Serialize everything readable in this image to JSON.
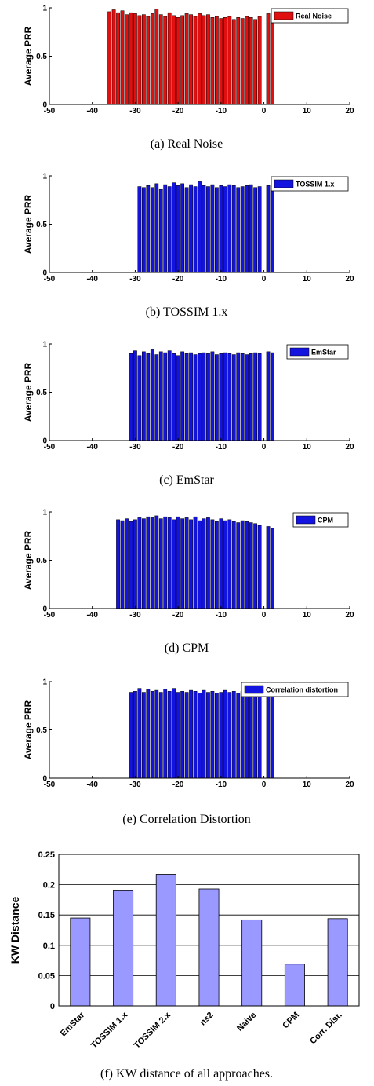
{
  "chart_data": [
    {
      "type": "bar",
      "ylabel": "Average PRR",
      "xlim": [
        -50,
        20
      ],
      "ylim": [
        0,
        1
      ],
      "xticks": [
        "-50",
        "-40",
        "-30",
        "-20",
        "-10",
        "0",
        "10",
        "20"
      ],
      "yticks": [
        "0",
        "0.5",
        "1"
      ],
      "legend": "Real Noise",
      "legend_position": "top-right",
      "color": "#e01010",
      "caption": "(a) Real Noise",
      "x": [
        -36,
        -35,
        -34,
        -33,
        -32,
        -31,
        -30,
        -29,
        -28,
        -27,
        -26,
        -25,
        -24,
        -23,
        -22,
        -21,
        -20,
        -19,
        -18,
        -17,
        -16,
        -15,
        -14,
        -13,
        -12,
        -11,
        -10,
        -9,
        -8,
        -7,
        -6,
        -5,
        -4,
        -3,
        -2,
        -1,
        1,
        2
      ],
      "values": [
        0.96,
        0.98,
        0.95,
        0.97,
        0.93,
        0.95,
        0.94,
        0.92,
        0.93,
        0.91,
        0.94,
        0.99,
        0.93,
        0.91,
        0.95,
        0.92,
        0.9,
        0.92,
        0.94,
        0.93,
        0.91,
        0.94,
        0.92,
        0.93,
        0.9,
        0.91,
        0.89,
        0.9,
        0.91,
        0.88,
        0.9,
        0.89,
        0.91,
        0.9,
        0.88,
        0.91,
        0.94,
        0.89
      ]
    },
    {
      "type": "bar",
      "ylabel": "Average PRR",
      "xlim": [
        -50,
        20
      ],
      "ylim": [
        0,
        1
      ],
      "xticks": [
        "-50",
        "-40",
        "-30",
        "-20",
        "-10",
        "0",
        "10",
        "20"
      ],
      "yticks": [
        "0",
        "0.5",
        "1"
      ],
      "legend": "TOSSIM 1.x",
      "legend_position": "top-right",
      "color": "#1414e0",
      "caption": "(b) TOSSIM 1.x",
      "x": [
        -29,
        -28,
        -27,
        -26,
        -25,
        -24,
        -23,
        -22,
        -21,
        -20,
        -19,
        -18,
        -17,
        -16,
        -15,
        -14,
        -13,
        -12,
        -11,
        -10,
        -9,
        -8,
        -7,
        -6,
        -5,
        -4,
        -3,
        -2,
        -1,
        1,
        2
      ],
      "values": [
        0.89,
        0.88,
        0.9,
        0.88,
        0.92,
        0.86,
        0.91,
        0.89,
        0.93,
        0.9,
        0.92,
        0.88,
        0.91,
        0.89,
        0.94,
        0.9,
        0.89,
        0.91,
        0.88,
        0.9,
        0.89,
        0.91,
        0.9,
        0.88,
        0.89,
        0.9,
        0.91,
        0.88,
        0.89,
        0.9,
        0.88
      ]
    },
    {
      "type": "bar",
      "ylabel": "Average PRR",
      "xlim": [
        -50,
        20
      ],
      "ylim": [
        0,
        1
      ],
      "xticks": [
        "-50",
        "-40",
        "-30",
        "-20",
        "-10",
        "0",
        "10",
        "20"
      ],
      "yticks": [
        "0",
        "0.5",
        "1"
      ],
      "legend": "EmStar",
      "legend_position": "top-right",
      "color": "#1414e0",
      "caption": "(c) EmStar",
      "x": [
        -31,
        -30,
        -29,
        -28,
        -27,
        -26,
        -25,
        -24,
        -23,
        -22,
        -21,
        -20,
        -19,
        -18,
        -17,
        -16,
        -15,
        -14,
        -13,
        -12,
        -11,
        -10,
        -9,
        -8,
        -7,
        -6,
        -5,
        -4,
        -3,
        -2,
        -1,
        1,
        2
      ],
      "values": [
        0.9,
        0.93,
        0.88,
        0.92,
        0.9,
        0.94,
        0.89,
        0.92,
        0.91,
        0.93,
        0.9,
        0.88,
        0.92,
        0.9,
        0.91,
        0.89,
        0.9,
        0.91,
        0.9,
        0.92,
        0.89,
        0.9,
        0.91,
        0.9,
        0.89,
        0.91,
        0.9,
        0.89,
        0.9,
        0.91,
        0.9,
        0.92,
        0.91
      ]
    },
    {
      "type": "bar",
      "ylabel": "Average PRR",
      "xlim": [
        -50,
        20
      ],
      "ylim": [
        0,
        1
      ],
      "xticks": [
        "-50",
        "-40",
        "-30",
        "-20",
        "-10",
        "0",
        "10",
        "20"
      ],
      "yticks": [
        "0",
        "0.5",
        "1"
      ],
      "legend": "CPM",
      "legend_position": "top-right",
      "color": "#1414e0",
      "caption": "(d) CPM",
      "x": [
        -34,
        -33,
        -32,
        -31,
        -30,
        -29,
        -28,
        -27,
        -26,
        -25,
        -24,
        -23,
        -22,
        -21,
        -20,
        -19,
        -18,
        -17,
        -16,
        -15,
        -14,
        -13,
        -12,
        -11,
        -10,
        -9,
        -8,
        -7,
        -6,
        -5,
        -4,
        -3,
        -2,
        -1,
        1,
        2
      ],
      "values": [
        0.92,
        0.91,
        0.93,
        0.9,
        0.92,
        0.94,
        0.93,
        0.95,
        0.94,
        0.96,
        0.93,
        0.95,
        0.94,
        0.92,
        0.95,
        0.93,
        0.94,
        0.92,
        0.95,
        0.91,
        0.93,
        0.94,
        0.92,
        0.9,
        0.93,
        0.91,
        0.92,
        0.9,
        0.89,
        0.91,
        0.9,
        0.89,
        0.88,
        0.86,
        0.85,
        0.83
      ]
    },
    {
      "type": "bar",
      "ylabel": "Average PRR",
      "xlim": [
        -50,
        20
      ],
      "ylim": [
        0,
        1
      ],
      "xticks": [
        "-50",
        "-40",
        "-30",
        "-20",
        "-10",
        "0",
        "10",
        "20"
      ],
      "yticks": [
        "0",
        "0.5",
        "1"
      ],
      "legend": "Correlation distortion",
      "legend_position": "top-right",
      "color": "#1414e0",
      "caption": "(e) Correlation Distortion",
      "x": [
        -31,
        -30,
        -29,
        -28,
        -27,
        -26,
        -25,
        -24,
        -23,
        -22,
        -21,
        -20,
        -19,
        -18,
        -17,
        -16,
        -15,
        -14,
        -13,
        -12,
        -11,
        -10,
        -9,
        -8,
        -7,
        -6,
        -5,
        -4,
        -3,
        -2,
        -1,
        1,
        2
      ],
      "values": [
        0.89,
        0.9,
        0.93,
        0.89,
        0.92,
        0.9,
        0.91,
        0.89,
        0.92,
        0.9,
        0.93,
        0.89,
        0.9,
        0.89,
        0.91,
        0.9,
        0.88,
        0.91,
        0.89,
        0.9,
        0.88,
        0.89,
        0.91,
        0.89,
        0.9,
        0.88,
        0.9,
        0.89,
        0.88,
        0.9,
        0.89,
        0.91,
        0.89
      ]
    },
    {
      "type": "bar",
      "ylabel": "KW Distance",
      "ylim": [
        0,
        0.25
      ],
      "yticks": [
        "0",
        "0.05",
        "0.1",
        "0.15",
        "0.2",
        "0.25"
      ],
      "grid": true,
      "color": "#9999ff",
      "caption": "(f) KW distance of all approaches.",
      "categories": [
        "EmStar",
        "TOSSIM 1.x",
        "TOSSIM 2.x",
        "ns2",
        "Naive",
        "CPM",
        "Corr. Dist."
      ],
      "values": [
        0.145,
        0.19,
        0.217,
        0.193,
        0.142,
        0.069,
        0.144
      ]
    }
  ]
}
